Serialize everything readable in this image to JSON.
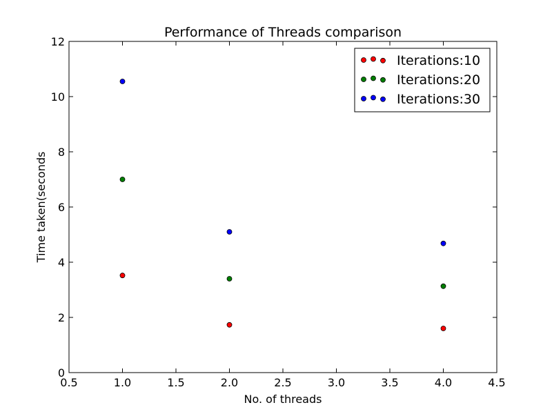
{
  "chart_data": {
    "type": "scatter",
    "title": "Performance of Threads comparison",
    "xlabel": "No. of threads",
    "ylabel": "Time taken(seconds",
    "xlim": [
      0.5,
      4.5
    ],
    "ylim": [
      0,
      12
    ],
    "xticks": [
      "0.5",
      "1.0",
      "1.5",
      "2.0",
      "2.5",
      "3.0",
      "3.5",
      "4.0",
      "4.5"
    ],
    "yticks": [
      "0",
      "2",
      "4",
      "6",
      "8",
      "10",
      "12"
    ],
    "grid": false,
    "legend_position": "top-right",
    "x": [
      1,
      2,
      4
    ],
    "series": [
      {
        "name": "Iterations:10",
        "color": "#ff0000",
        "values": [
          3.52,
          1.73,
          1.6
        ]
      },
      {
        "name": "Iterations:20",
        "color": "#007f00",
        "values": [
          7.0,
          3.4,
          3.13
        ]
      },
      {
        "name": "Iterations:30",
        "color": "#0000ff",
        "values": [
          10.55,
          5.1,
          4.68
        ]
      }
    ]
  }
}
